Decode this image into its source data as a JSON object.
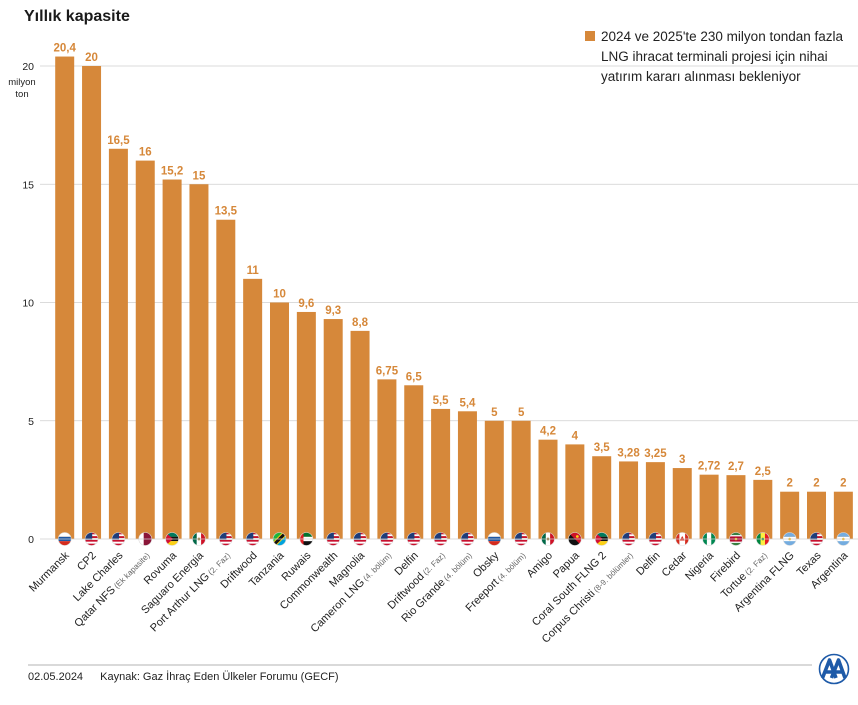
{
  "title": "Yıllık kapasite",
  "legend": {
    "text": "2024 ve 2025'te 230 milyon tondan fazla LNG ihracat terminali projesi için nihai yatırım kararı alınması bekleniyor",
    "color": "#D6883A"
  },
  "footer": {
    "date": "02.05.2024",
    "source": "Kaynak: Gaz İhraç Eden Ülkeler Forumu (GECF)"
  },
  "logo": {
    "icon": "aa-logo-icon",
    "color": "#1E5AA8"
  },
  "chart_data": {
    "type": "bar",
    "unit_label": [
      "milyon",
      "ton"
    ],
    "ylim": [
      0,
      21
    ],
    "yticks": [
      0,
      5,
      10,
      15,
      20
    ],
    "grid": true,
    "bar_color": "#D6883A",
    "label_color": "#D6883A",
    "categories": [
      {
        "name": "Murmansk",
        "note": "",
        "label": "20,4",
        "value": 20.4,
        "flag": "russia"
      },
      {
        "name": "CP2",
        "note": "",
        "label": "20",
        "value": 20,
        "flag": "usa"
      },
      {
        "name": "Lake Charles",
        "note": "",
        "label": "16,5",
        "value": 16.5,
        "flag": "usa"
      },
      {
        "name": "Qatar NFS",
        "note": "(Ek kapasite)",
        "label": "16",
        "value": 16,
        "flag": "qatar"
      },
      {
        "name": "Rovuma",
        "note": "",
        "label": "15,2",
        "value": 15.2,
        "flag": "mozambique"
      },
      {
        "name": "Saguaro Energia",
        "note": "",
        "label": "15",
        "value": 15,
        "flag": "mexico"
      },
      {
        "name": "Port Arthur LNG",
        "note": "(2. Faz)",
        "label": "13,5",
        "value": 13.5,
        "flag": "usa"
      },
      {
        "name": "Driftwood",
        "note": "",
        "label": "11",
        "value": 11,
        "flag": "usa"
      },
      {
        "name": "Tanzania",
        "note": "",
        "label": "10",
        "value": 10,
        "flag": "tanzania"
      },
      {
        "name": "Ruwais",
        "note": "",
        "label": "9,6",
        "value": 9.6,
        "flag": "uae"
      },
      {
        "name": "Commonwealth",
        "note": "",
        "label": "9,3",
        "value": 9.3,
        "flag": "usa"
      },
      {
        "name": "Magnolia",
        "note": "",
        "label": "8,8",
        "value": 8.8,
        "flag": "usa"
      },
      {
        "name": "Cameron LNG",
        "note": "(4. bölüm)",
        "label": "6,75",
        "value": 6.75,
        "flag": "usa"
      },
      {
        "name": "Delfin",
        "note": "",
        "label": "6,5",
        "value": 6.5,
        "flag": "usa"
      },
      {
        "name": "Driftwood",
        "note": "(2. Faz)",
        "label": "5,5",
        "value": 5.5,
        "flag": "usa"
      },
      {
        "name": "Rio Grande",
        "note": "(4. bölüm)",
        "label": "5,4",
        "value": 5.4,
        "flag": "usa"
      },
      {
        "name": "Obsky",
        "note": "",
        "label": "5",
        "value": 5,
        "flag": "russia"
      },
      {
        "name": "Freeport",
        "note": "(4. bölüm)",
        "label": "5",
        "value": 5,
        "flag": "usa"
      },
      {
        "name": "Amigo",
        "note": "",
        "label": "4,2",
        "value": 4.2,
        "flag": "mexico"
      },
      {
        "name": "Papua",
        "note": "",
        "label": "4",
        "value": 4,
        "flag": "png"
      },
      {
        "name": "Coral South FLNG 2",
        "note": "",
        "label": "3,5",
        "value": 3.5,
        "flag": "mozambique"
      },
      {
        "name": "Corpus Christi",
        "note": "(8-9. bölümler)",
        "label": "3,28",
        "value": 3.28,
        "flag": "usa"
      },
      {
        "name": "Delfin",
        "note": "",
        "label": "3,25",
        "value": 3.25,
        "flag": "usa"
      },
      {
        "name": "Cedar",
        "note": "",
        "label": "3",
        "value": 3,
        "flag": "canada"
      },
      {
        "name": "Nigeria",
        "note": "",
        "label": "2,72",
        "value": 2.72,
        "flag": "nigeria"
      },
      {
        "name": "Firebird",
        "note": "",
        "label": "2,7",
        "value": 2.7,
        "flag": "suriname"
      },
      {
        "name": "Tortue",
        "note": "(2. Faz)",
        "label": "2,5",
        "value": 2.5,
        "flag": "senegal"
      },
      {
        "name": "Argentina FLNG",
        "note": "",
        "label": "2",
        "value": 2,
        "flag": "argentina"
      },
      {
        "name": "Texas",
        "note": "",
        "label": "2",
        "value": 2,
        "flag": "usa"
      },
      {
        "name": "Argentina",
        "note": "",
        "label": "2",
        "value": 2,
        "flag": "argentina"
      }
    ]
  }
}
